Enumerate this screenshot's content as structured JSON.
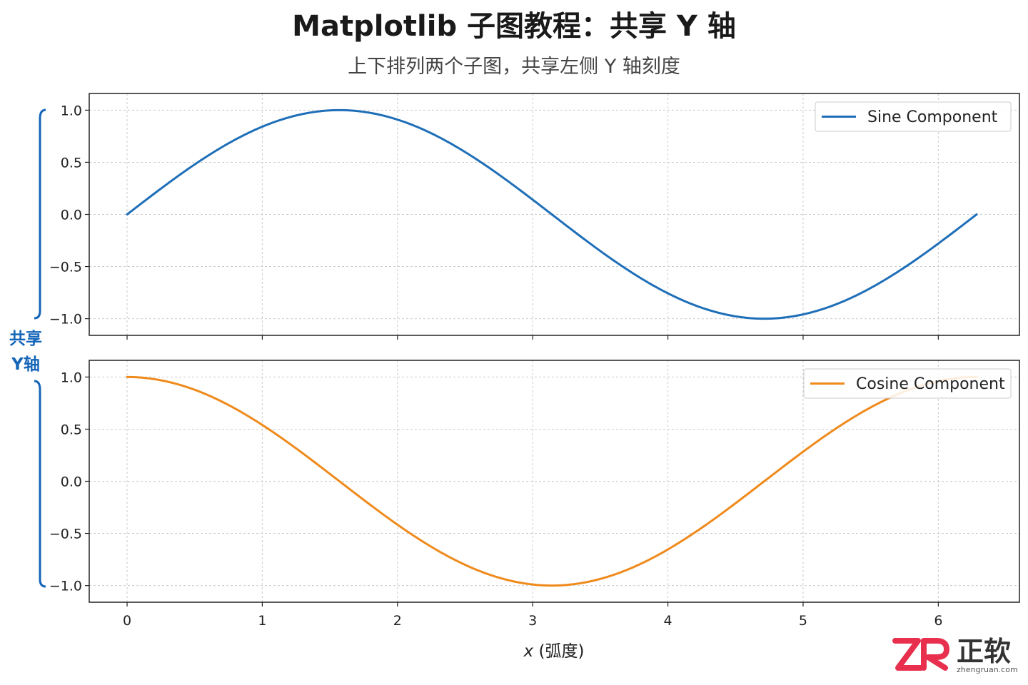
{
  "title": "Matplotlib 子图教程：共享 Y 轴",
  "subtitle": "上下排列两个子图，共享左侧 Y 轴刻度",
  "shared_label": {
    "line1": "共享",
    "line2": "Y轴",
    "color": "#1565b8"
  },
  "xlabel_var": "x",
  "xlabel_unit": " (弧度)",
  "logo": {
    "brand": "正软",
    "domain": "zhengruan.com"
  },
  "chart_data": [
    {
      "type": "line",
      "x_range": [
        0,
        6.2832
      ],
      "xlim": [
        -0.28,
        6.6
      ],
      "ylim": [
        -1.16,
        1.16
      ],
      "x_ticks": [
        0,
        1,
        2,
        3,
        4,
        5,
        6
      ],
      "y_ticks": [
        1.0,
        0.5,
        0.0,
        -0.5,
        -1.0
      ],
      "y_tick_labels": [
        "1.0",
        "0.5",
        "0.0",
        "−0.5",
        "−1.0"
      ],
      "show_x_tick_labels": false,
      "grid": true,
      "legend": "top-right",
      "series": [
        {
          "name": "Sine Component",
          "function": "sin",
          "color": "#1f6fb8"
        }
      ]
    },
    {
      "type": "line",
      "x_range": [
        0,
        6.2832
      ],
      "xlim": [
        -0.28,
        6.6
      ],
      "ylim": [
        -1.16,
        1.16
      ],
      "x_ticks": [
        0,
        1,
        2,
        3,
        4,
        5,
        6
      ],
      "x_tick_labels": [
        "0",
        "1",
        "2",
        "3",
        "4",
        "5",
        "6"
      ],
      "y_ticks": [
        1.0,
        0.5,
        0.0,
        -0.5,
        -1.0
      ],
      "y_tick_labels": [
        "1.0",
        "0.5",
        "0.0",
        "−0.5",
        "−1.0"
      ],
      "show_x_tick_labels": true,
      "grid": true,
      "legend": "top-right",
      "series": [
        {
          "name": "Cosine Component",
          "function": "cos",
          "color": "#ef8a1c"
        }
      ]
    }
  ]
}
